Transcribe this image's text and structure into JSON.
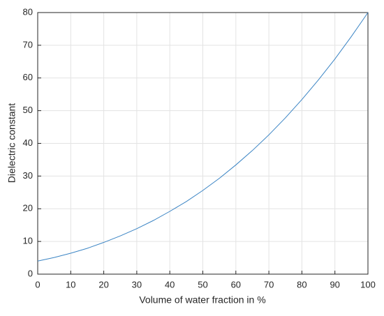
{
  "chart_data": {
    "type": "line",
    "xlabel": "Volume of water fraction in %",
    "ylabel": "Dielectric constant",
    "x": [
      0,
      5,
      10,
      15,
      20,
      25,
      30,
      35,
      40,
      45,
      50,
      55,
      60,
      65,
      70,
      75,
      80,
      85,
      90,
      95,
      100
    ],
    "series": [
      {
        "color": "#3a84c4",
        "values": [
          4,
          5.1,
          6.4,
          7.9,
          9.7,
          11.7,
          13.9,
          16.4,
          19.2,
          22.2,
          25.6,
          29.3,
          33.4,
          37.8,
          42.6,
          47.8,
          53.4,
          59.4,
          65.8,
          72.7,
          80
        ]
      }
    ],
    "xlim": [
      0,
      100
    ],
    "xticks": [
      0,
      10,
      20,
      30,
      40,
      50,
      60,
      70,
      80,
      90,
      100
    ],
    "ylim": [
      0,
      80
    ],
    "yticks": [
      0,
      10,
      20,
      30,
      40,
      50,
      60,
      70,
      80
    ],
    "grid": true
  }
}
